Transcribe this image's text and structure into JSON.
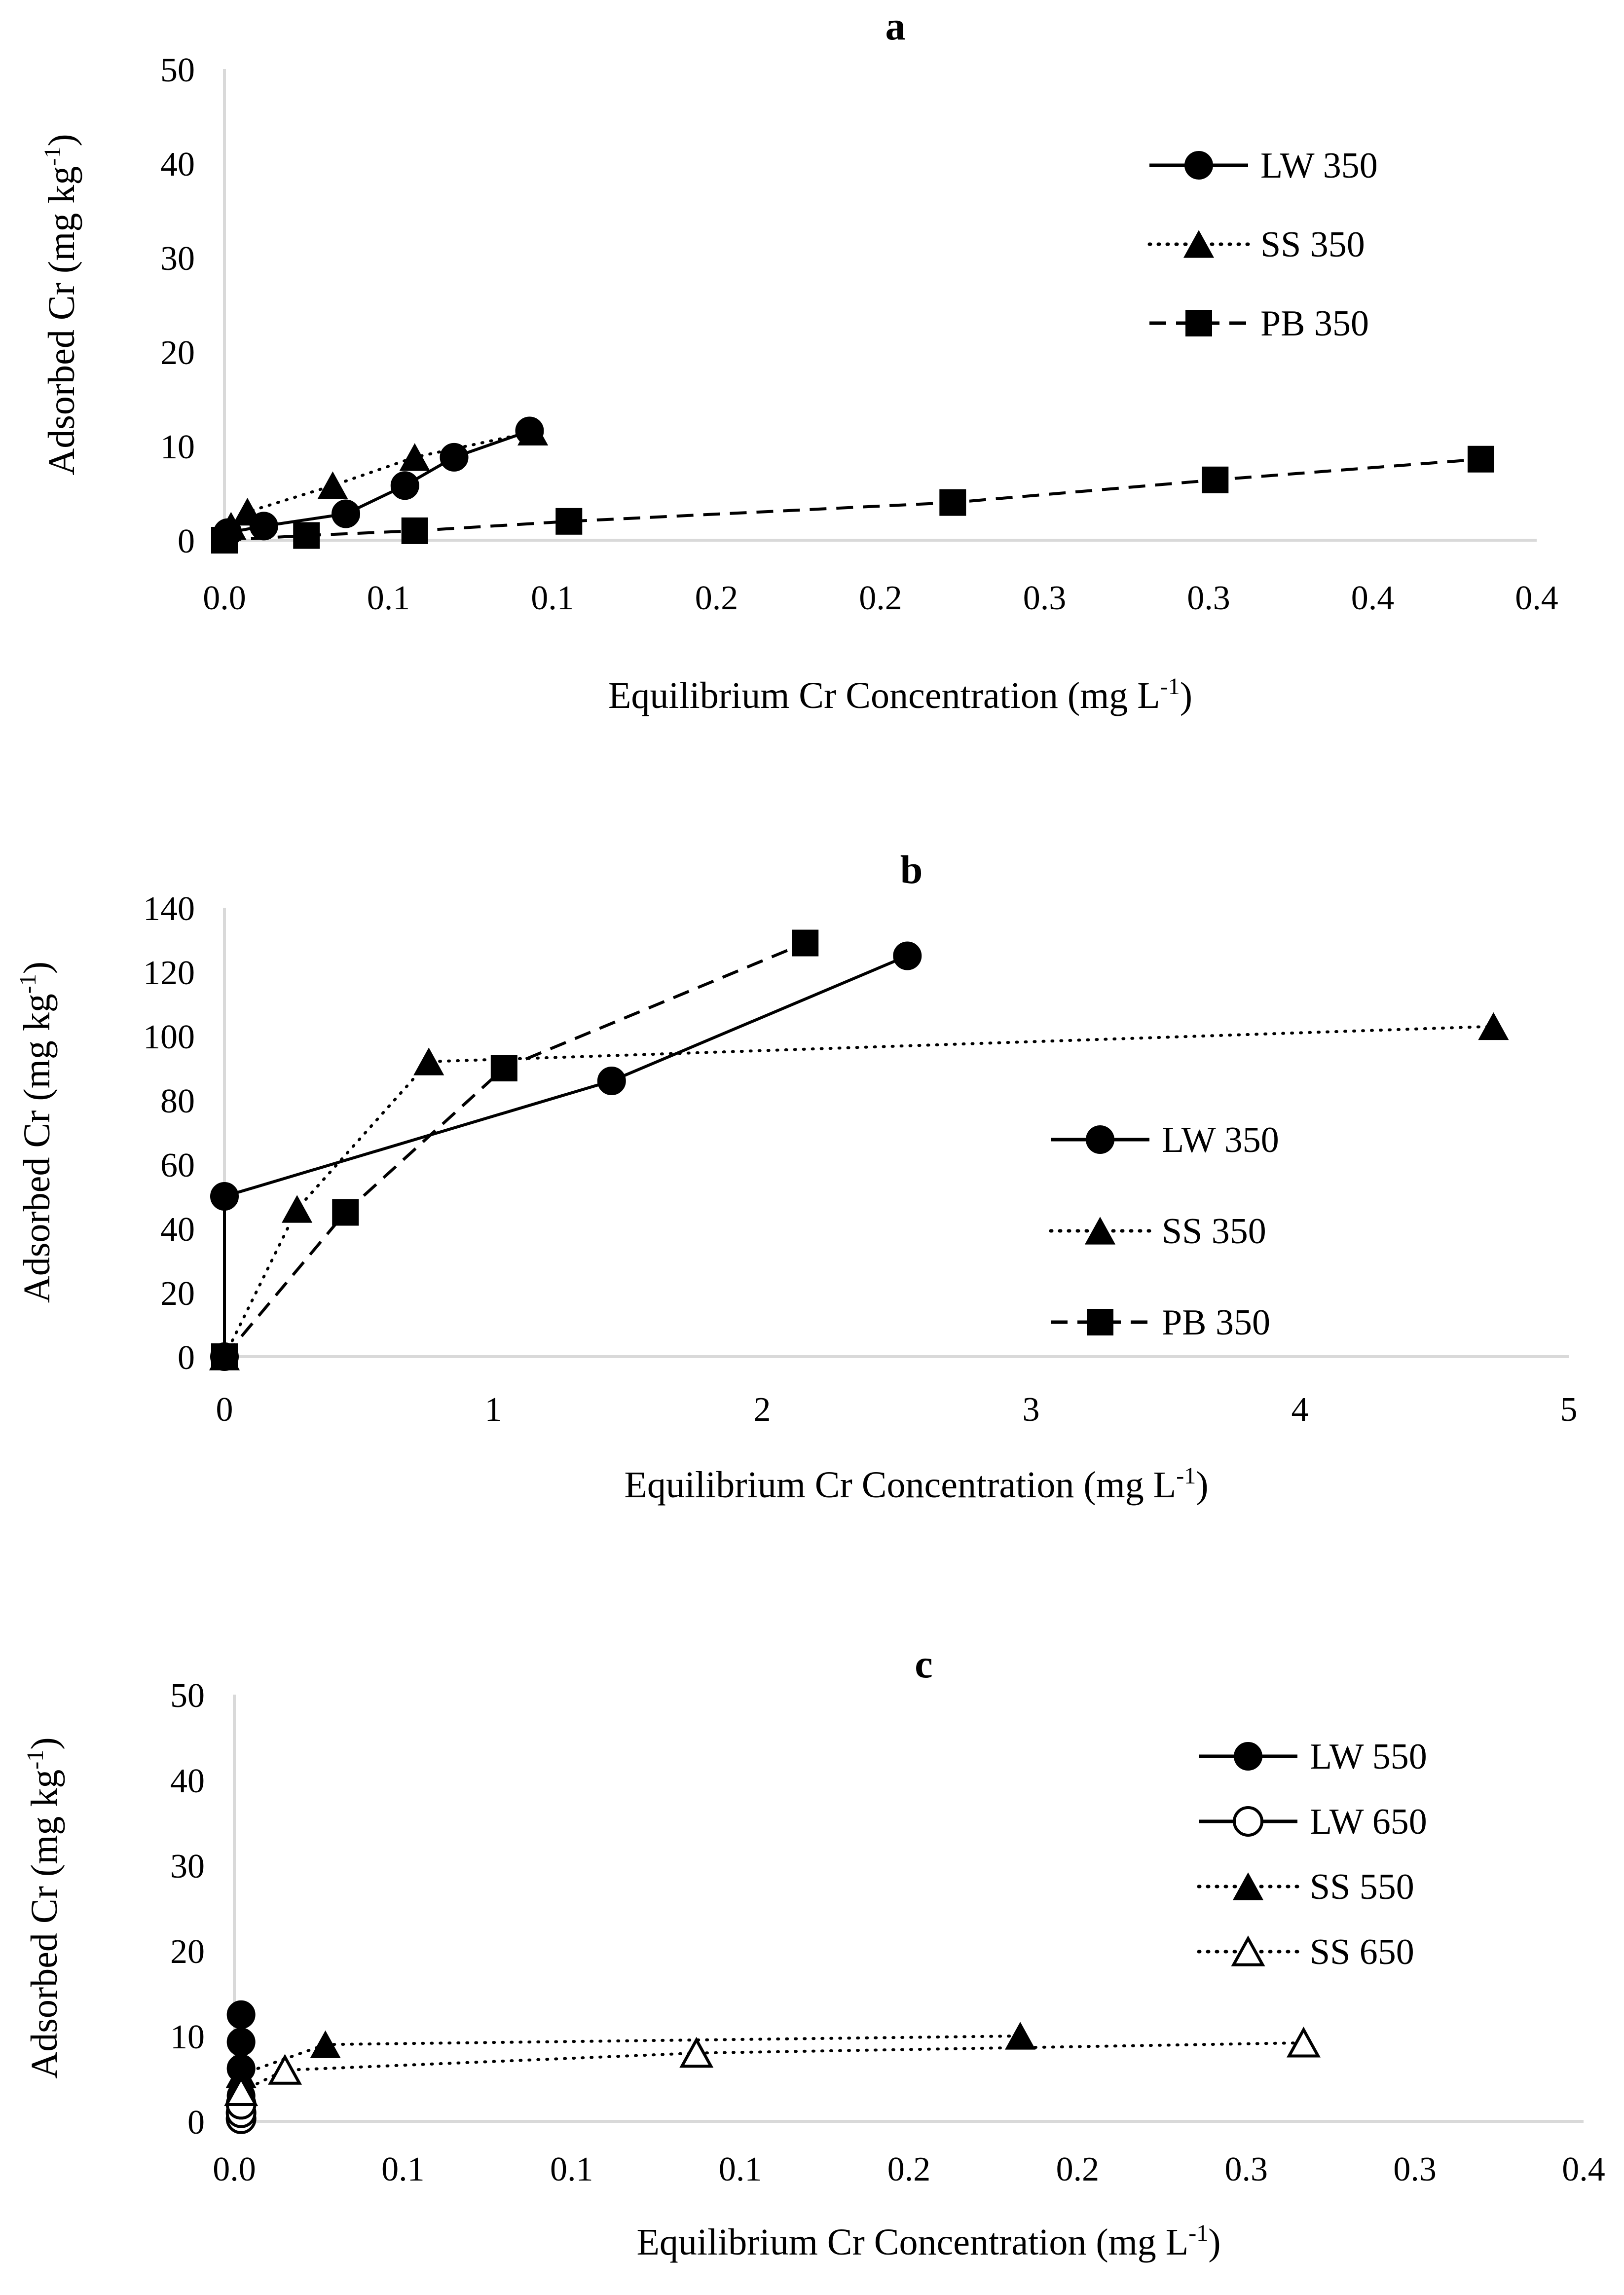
{
  "chart_data": [
    {
      "type": "line",
      "panel_label": "a",
      "title": "a",
      "xlabel": "Equilibrium Cr Concentration (mg L",
      "xlabel_sup": "-1",
      "xlabel_end": ")",
      "ylabel": "Adsorbed Cr (mg kg",
      "ylabel_sup": "-1",
      "ylabel_end": ")",
      "xlim": [
        0,
        0.4
      ],
      "ylim": [
        0,
        50
      ],
      "grid": false,
      "legend_position": "top-right",
      "x_ticks": [
        0,
        0.05,
        0.1,
        0.15,
        0.2,
        0.25,
        0.3,
        0.35,
        0.4
      ],
      "x_tick_labels": [
        "0.0",
        "0.1",
        "0.1",
        "0.2",
        "0.2",
        "0.3",
        "0.3",
        "0.4",
        "0.4"
      ],
      "y_ticks": [
        0,
        10,
        20,
        30,
        40,
        50
      ],
      "y_tick_labels": [
        "0",
        "10",
        "20",
        "30",
        "40",
        "50"
      ],
      "series": [
        {
          "name": "LW 350",
          "marker": "circle",
          "filled": true,
          "line": "solid",
          "x": [
            0.001,
            0.012,
            0.037,
            0.055,
            0.07,
            0.093
          ],
          "y": [
            0.8,
            1.5,
            2.8,
            5.8,
            8.8,
            11.6
          ]
        },
        {
          "name": "SS 350",
          "marker": "triangle",
          "filled": true,
          "line": "dotted",
          "x": [
            0.002,
            0.007,
            0.033,
            0.058,
            0.094
          ],
          "y": [
            1.5,
            3.0,
            5.8,
            8.8,
            11.5
          ]
        },
        {
          "name": "PB 350",
          "marker": "square",
          "filled": true,
          "line": "dashed",
          "x": [
            0.0,
            0.025,
            0.058,
            0.105,
            0.222,
            0.302,
            0.383
          ],
          "y": [
            0.0,
            0.5,
            1.0,
            2.0,
            4.0,
            6.4,
            8.6
          ]
        }
      ]
    },
    {
      "type": "line",
      "panel_label": "b",
      "title": "b",
      "xlabel": "Equilibrium Cr Concentration (mg L",
      "xlabel_sup": "-1",
      "xlabel_end": ")",
      "ylabel": "Adsorbed Cr (mg kg",
      "ylabel_sup": "-1",
      "ylabel_end": ")",
      "xlim": [
        0,
        5
      ],
      "ylim": [
        0,
        140
      ],
      "grid": false,
      "legend_position": "center-right",
      "x_ticks": [
        0,
        1,
        2,
        3,
        4,
        5
      ],
      "x_tick_labels": [
        "0",
        "1",
        "2",
        "3",
        "4",
        "5"
      ],
      "y_ticks": [
        0,
        20,
        40,
        60,
        80,
        100,
        120,
        140
      ],
      "y_tick_labels": [
        "0",
        "20",
        "40",
        "60",
        "80",
        "100",
        "120",
        "140"
      ],
      "series": [
        {
          "name": "LW 350",
          "marker": "circle",
          "filled": true,
          "line": "solid",
          "x": [
            0,
            0,
            1.44,
            2.54
          ],
          "y": [
            0,
            50,
            86,
            125
          ]
        },
        {
          "name": "SS 350",
          "marker": "triangle",
          "filled": true,
          "line": "dotted",
          "x": [
            0,
            0.27,
            0.76,
            4.72
          ],
          "y": [
            0,
            46,
            92,
            103
          ]
        },
        {
          "name": "PB 350",
          "marker": "square",
          "filled": true,
          "line": "dashed",
          "x": [
            0,
            0.45,
            1.04,
            2.16
          ],
          "y": [
            0,
            45,
            90,
            129
          ]
        }
      ]
    },
    {
      "type": "line",
      "panel_label": "c",
      "title": "c",
      "xlabel": "Equilibrium Cr Concentration (mg L",
      "xlabel_sup": "-1",
      "xlabel_end": ")",
      "ylabel": "Adsorbed Cr (mg kg",
      "ylabel_sup": "-1",
      "ylabel_end": ")",
      "xlim": [
        0,
        0.4
      ],
      "ylim": [
        0,
        50
      ],
      "grid": false,
      "legend_position": "top-right",
      "x_ticks": [
        0,
        0.05,
        0.1,
        0.15,
        0.2,
        0.25,
        0.3,
        0.35,
        0.4
      ],
      "x_tick_labels": [
        "0.0",
        "0.1",
        "0.1",
        "0.1",
        "0.2",
        "0.2",
        "0.3",
        "0.3",
        "0.4"
      ],
      "y_ticks": [
        0,
        10,
        20,
        30,
        40,
        50
      ],
      "y_tick_labels": [
        "0",
        "10",
        "20",
        "30",
        "40",
        "50"
      ],
      "series": [
        {
          "name": "LW 550",
          "marker": "circle",
          "filled": true,
          "line": "solid",
          "x": [
            0.002,
            0.002,
            0.002,
            0.002,
            0.002,
            0.002
          ],
          "y": [
            0.5,
            1.5,
            3.0,
            6.2,
            9.3,
            12.5
          ]
        },
        {
          "name": "LW 650",
          "marker": "circle",
          "filled": false,
          "line": "solid",
          "x": [
            0.002,
            0.002,
            0.002
          ],
          "y": [
            0.3,
            1.0,
            2.0
          ]
        },
        {
          "name": "SS 550",
          "marker": "triangle",
          "filled": true,
          "line": "dotted",
          "x": [
            0.002,
            0.027,
            0.233
          ],
          "y": [
            5.5,
            9.0,
            10.0
          ]
        },
        {
          "name": "SS 650",
          "marker": "triangle",
          "filled": false,
          "line": "dotted",
          "x": [
            0.002,
            0.015,
            0.137,
            0.317
          ],
          "y": [
            3.5,
            6.0,
            8.0,
            9.2
          ]
        }
      ]
    }
  ]
}
